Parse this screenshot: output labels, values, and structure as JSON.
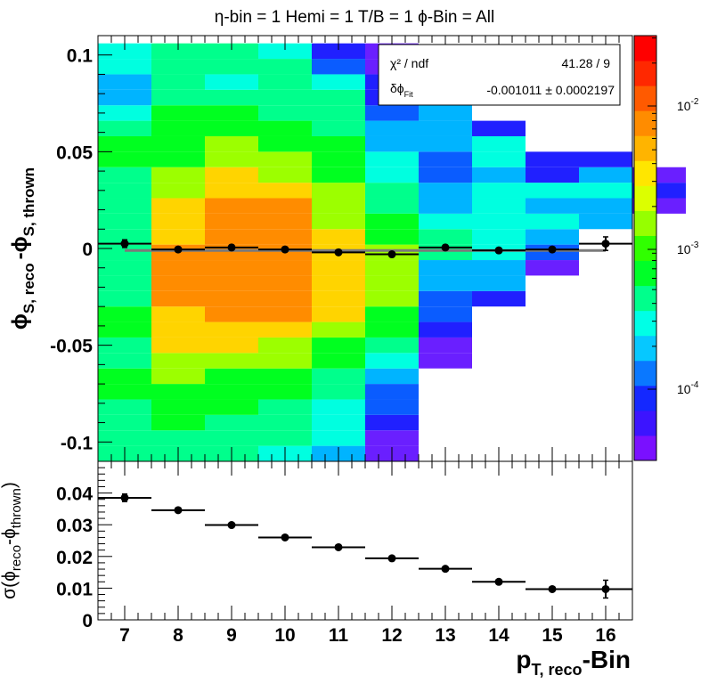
{
  "chart_data": {
    "type": "heatmap",
    "title": "η-bin = 1 Hemi = 1 T/B = 1  ϕ-Bin = All",
    "stats": {
      "rows": [
        {
          "label": "χ² / ndf",
          "value": "41.28 / 9"
        },
        {
          "label": "δϕ",
          "label_sub": "Fit",
          "value": "-0.001011 ± 0.0002197"
        }
      ]
    },
    "top": {
      "ylabel": "ϕ",
      "ylabel_sub1": "S, reco",
      "ylabel_mid": "-ϕ",
      "ylabel_sub2": "S, thrown",
      "ylim": [
        -0.11,
        0.11
      ],
      "yticks": [
        {
          "v": 0.1,
          "label": "0.1"
        },
        {
          "v": 0.05,
          "label": "0.05"
        },
        {
          "v": 0,
          "label": "0"
        },
        {
          "v": -0.05,
          "label": "-0.05"
        },
        {
          "v": -0.1,
          "label": "-0.1"
        }
      ],
      "heat_y0": -0.11,
      "heat_dy": 0.008,
      "heat_columns": [
        [
          5,
          5,
          5,
          5,
          6,
          6,
          5,
          5,
          6,
          6,
          5,
          5,
          5,
          5,
          5,
          5,
          5,
          5,
          5,
          6,
          6,
          5,
          4,
          3,
          3,
          4,
          4
        ],
        [
          5,
          5,
          6,
          6,
          6,
          7,
          7,
          8,
          8,
          8,
          9,
          9,
          9,
          9,
          8,
          8,
          8,
          7,
          7,
          6,
          6,
          6,
          6,
          5,
          5,
          5,
          5
        ],
        [
          5,
          5,
          5,
          6,
          6,
          6,
          7,
          8,
          8,
          9,
          9,
          9,
          9,
          9,
          9,
          9,
          9,
          8,
          8,
          7,
          7,
          6,
          6,
          5,
          4,
          5,
          5
        ],
        [
          4,
          5,
          5,
          5,
          6,
          6,
          7,
          7,
          8,
          9,
          9,
          9,
          9,
          9,
          9,
          9,
          9,
          8,
          7,
          7,
          6,
          6,
          5,
          5,
          5,
          5,
          4
        ],
        [
          3,
          4,
          4,
          4,
          5,
          5,
          6,
          6,
          7,
          8,
          8,
          8,
          8,
          8,
          8,
          7,
          7,
          7,
          6,
          6,
          6,
          5,
          5,
          5,
          4,
          2,
          1
        ],
        [
          0,
          0,
          1,
          2,
          2,
          3,
          4,
          5,
          6,
          6,
          7,
          7,
          7,
          7,
          6,
          6,
          5,
          5,
          4,
          4,
          3,
          3,
          2,
          1,
          1,
          0,
          0
        ],
        [
          null,
          null,
          null,
          null,
          null,
          null,
          0,
          0,
          1,
          2,
          2,
          3,
          3,
          5,
          5,
          4,
          3,
          3,
          2,
          2,
          3,
          3,
          3,
          2,
          null,
          null,
          null
        ],
        [
          null,
          null,
          null,
          null,
          null,
          null,
          null,
          null,
          null,
          null,
          1,
          3,
          3,
          4,
          4,
          4,
          4,
          4,
          3,
          4,
          4,
          1,
          null,
          null,
          null,
          null,
          null
        ],
        [
          null,
          null,
          null,
          null,
          null,
          null,
          null,
          null,
          null,
          null,
          null,
          null,
          0,
          2,
          3,
          4,
          3,
          4,
          1,
          1,
          null,
          null,
          null,
          null,
          null,
          null,
          null
        ],
        [
          null,
          null,
          null,
          null,
          null,
          null,
          null,
          null,
          null,
          null,
          null,
          null,
          null,
          null,
          null,
          3,
          3,
          4,
          3,
          1,
          null,
          null,
          null,
          null,
          null,
          null,
          null
        ],
        [
          null,
          null,
          null,
          null,
          null,
          null,
          null,
          null,
          null,
          null,
          null,
          null,
          null,
          null,
          null,
          null,
          0,
          1,
          0,
          null,
          null,
          null,
          null,
          null,
          null,
          null,
          null
        ]
      ],
      "points": [
        {
          "x": 7,
          "y": 0.0025,
          "ex": 0.5,
          "ey": 0.002
        },
        {
          "x": 8,
          "y": -0.0005,
          "ex": 0.5,
          "ey": 0.0013
        },
        {
          "x": 9,
          "y": 0.0005,
          "ex": 0.5,
          "ey": 0.0013
        },
        {
          "x": 10,
          "y": -0.0005,
          "ex": 0.5,
          "ey": 0.0013
        },
        {
          "x": 11,
          "y": -0.002,
          "ex": 0.5,
          "ey": 0.0013
        },
        {
          "x": 12,
          "y": -0.003,
          "ex": 0.5,
          "ey": 0.0013
        },
        {
          "x": 13,
          "y": 0.0005,
          "ex": 0.5,
          "ey": 0.0013
        },
        {
          "x": 14,
          "y": -0.001,
          "ex": 0.5,
          "ey": 0.0013
        },
        {
          "x": 15,
          "y": -0.0005,
          "ex": 0.5,
          "ey": 0.0013
        },
        {
          "x": 16,
          "y": 0.0025,
          "ex": 0.5,
          "ey": 0.0035
        }
      ],
      "fit": {
        "x1": 7.0,
        "x2": 16.0,
        "y": -0.001011
      }
    },
    "bottom": {
      "ylabel": "σ(ϕ",
      "ylabel_sub1": "reco",
      "ylabel_mid": "-ϕ",
      "ylabel_sub2": "thrown",
      "ylabel_end": ")",
      "ylim": [
        0,
        0.05
      ],
      "yticks": [
        {
          "v": 0,
          "label": "0"
        },
        {
          "v": 0.01,
          "label": "0.01"
        },
        {
          "v": 0.02,
          "label": "0.02"
        },
        {
          "v": 0.03,
          "label": "0.03"
        },
        {
          "v": 0.04,
          "label": "0.04"
        }
      ],
      "points": [
        {
          "x": 7,
          "y": 0.0385,
          "ex": 0.5,
          "ey": 0.0012
        },
        {
          "x": 8,
          "y": 0.0346,
          "ex": 0.5,
          "ey": 0.0006
        },
        {
          "x": 9,
          "y": 0.0299,
          "ex": 0.5,
          "ey": 0.0006
        },
        {
          "x": 10,
          "y": 0.026,
          "ex": 0.5,
          "ey": 0.0006
        },
        {
          "x": 11,
          "y": 0.0229,
          "ex": 0.5,
          "ey": 0.0006
        },
        {
          "x": 12,
          "y": 0.0194,
          "ex": 0.5,
          "ey": 0.0006
        },
        {
          "x": 13,
          "y": 0.0161,
          "ex": 0.5,
          "ey": 0.0006
        },
        {
          "x": 14,
          "y": 0.012,
          "ex": 0.5,
          "ey": 0.0006
        },
        {
          "x": 15,
          "y": 0.0097,
          "ex": 0.5,
          "ey": 0.0006
        },
        {
          "x": 16,
          "y": 0.0097,
          "ex": 0.5,
          "ey": 0.0028
        }
      ]
    },
    "x": {
      "label": "p",
      "label_sub": "T, reco",
      "label_end": "-Bin",
      "lim": [
        6.5,
        16.5
      ],
      "ticks": [
        {
          "v": 7,
          "label": "7"
        },
        {
          "v": 8,
          "label": "8"
        },
        {
          "v": 9,
          "label": "9"
        },
        {
          "v": 10,
          "label": "10"
        },
        {
          "v": 11,
          "label": "11"
        },
        {
          "v": 12,
          "label": "12"
        },
        {
          "v": 13,
          "label": "13"
        },
        {
          "v": 14,
          "label": "14"
        },
        {
          "v": 15,
          "label": "15"
        },
        {
          "v": 16,
          "label": "16"
        }
      ]
    },
    "colorbar": {
      "scale": "log",
      "colors": [
        "#7a10ff",
        "#3c14ff",
        "#1428ff",
        "#0a78ff",
        "#06c8ff",
        "#00ffe6",
        "#00ff8c",
        "#00ff28",
        "#30ff00",
        "#96ff00",
        "#dcff00",
        "#ffe600",
        "#ffb400",
        "#ff8c00",
        "#ff5a00",
        "#ff2800",
        "#ff0000"
      ],
      "labels": [
        {
          "base": "10",
          "exp": "-2"
        },
        {
          "base": "10",
          "exp": "-3"
        },
        {
          "base": "10",
          "exp": "-4"
        }
      ]
    },
    "heat_palette": [
      "#6a1fff",
      "#2020ff",
      "#0a5cff",
      "#00b4ff",
      "#00ffe0",
      "#00ff8c",
      "#00ff20",
      "#9cff00",
      "#ffd400",
      "#ff8c00",
      "#ff3000"
    ]
  }
}
